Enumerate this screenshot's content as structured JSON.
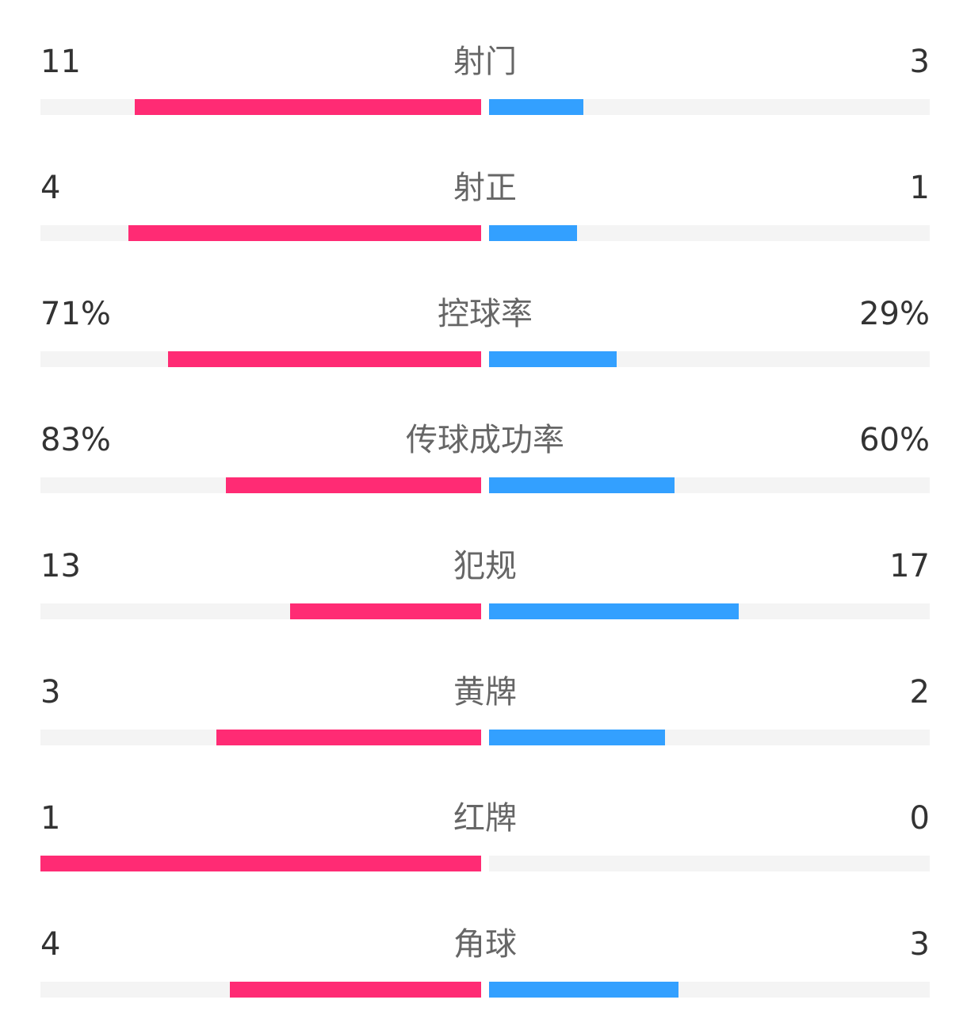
{
  "colors": {
    "home_bar": "#ff2b74",
    "away_bar": "#33a0ff",
    "track": "#f4f4f4",
    "value_text": "#333333",
    "name_text": "#666666"
  },
  "stats": [
    {
      "name": "射门",
      "home": "11",
      "away": "3",
      "home_fill": 0.786,
      "away_fill": 0.214
    },
    {
      "name": "射正",
      "home": "4",
      "away": "1",
      "home_fill": 0.8,
      "away_fill": 0.2
    },
    {
      "name": "控球率",
      "home": "71%",
      "away": "29%",
      "home_fill": 0.71,
      "away_fill": 0.29
    },
    {
      "name": "传球成功率",
      "home": "83%",
      "away": "60%",
      "home_fill": 0.58,
      "away_fill": 0.42
    },
    {
      "name": "犯规",
      "home": "13",
      "away": "17",
      "home_fill": 0.433,
      "away_fill": 0.567
    },
    {
      "name": "黄牌",
      "home": "3",
      "away": "2",
      "home_fill": 0.6,
      "away_fill": 0.4
    },
    {
      "name": "红牌",
      "home": "1",
      "away": "0",
      "home_fill": 1.0,
      "away_fill": 0.0
    },
    {
      "name": "角球",
      "home": "4",
      "away": "3",
      "home_fill": 0.571,
      "away_fill": 0.429
    }
  ]
}
